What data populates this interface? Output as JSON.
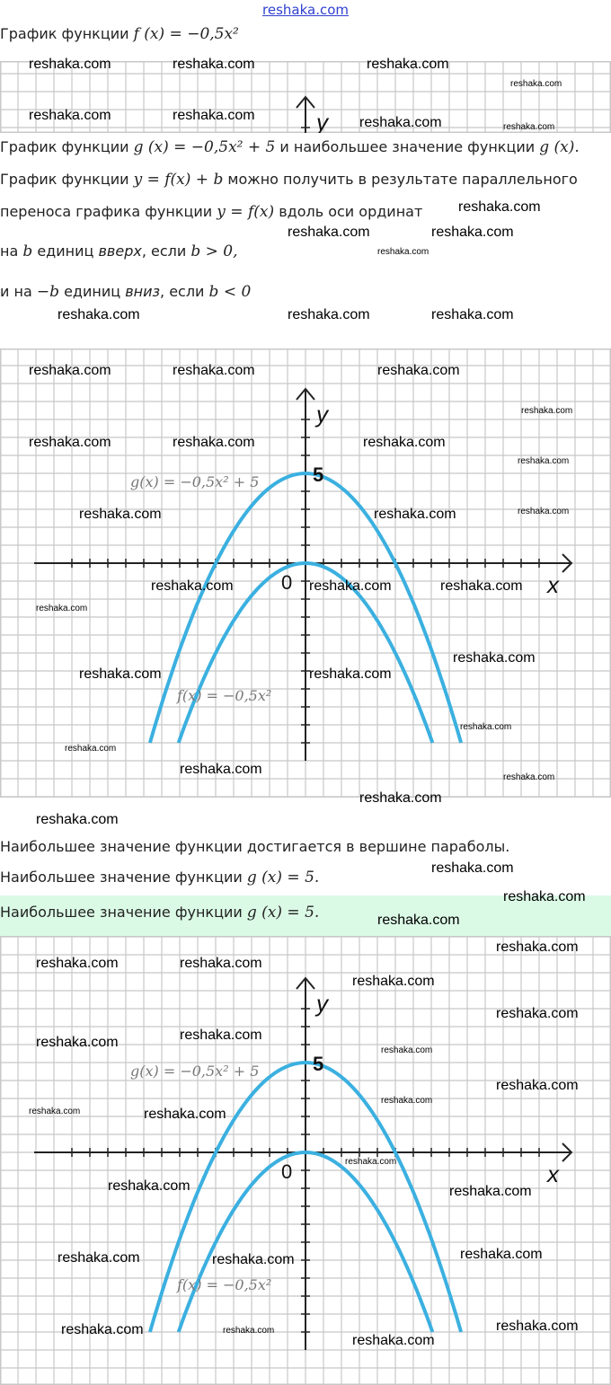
{
  "header": {
    "site": "reshaka.com"
  },
  "text": {
    "line1_prefix": "График функции ",
    "line1_math": "f (x) = −0,5x²",
    "line2_prefix": "График функции ",
    "line2_math": "g (x) = −0,5x² + 5",
    "line2_mid": " и наибольшее значение функции ",
    "line2_math2": "g (x).",
    "line3_prefix": "График функции ",
    "line3_math": "y = f(x) + b",
    "line3_suffix": " можно получить в результате параллельного",
    "line4_prefix": "переноса графика функции ",
    "line4_math": "y = f(x)",
    "line4_suffix": " вдоль оси ординат",
    "line5_a": "на ",
    "line5_b": "b",
    "line5_c": " единиц ",
    "line5_d": "вверх",
    "line5_e": ", если ",
    "line5_f": "b  >  0,",
    "line6_a": "и на ",
    "line6_b": "−b",
    "line6_c": " единиц ",
    "line6_d": "вниз",
    "line6_e": ", если ",
    "line6_f": "b  <  0",
    "line7": "Наибольшее значение функции достигается в вершине параболы.",
    "line8_prefix": "Наибольшее значение функции ",
    "line8_math": "g (x) = 5.",
    "answer_prefix": "Наибольшее значение функции ",
    "answer_math": "g (x) = 5."
  },
  "graph": {
    "x_label": "x",
    "y_label": "y",
    "origin_label": "0",
    "y_tick_label": "5",
    "g_label": "g(x) = −0,5x² + 5",
    "f_label": "f(x) = −0,5x²",
    "curves": [
      {
        "name": "g",
        "a": -0.5,
        "c": 5
      },
      {
        "name": "f",
        "a": -0.5,
        "c": 0
      }
    ],
    "curve_color": "#3bb0e0",
    "axis_color": "#222222",
    "grid_color": "#c8c8c8"
  },
  "watermark": "reshaka.com",
  "answer_bg": "#dbfae6"
}
